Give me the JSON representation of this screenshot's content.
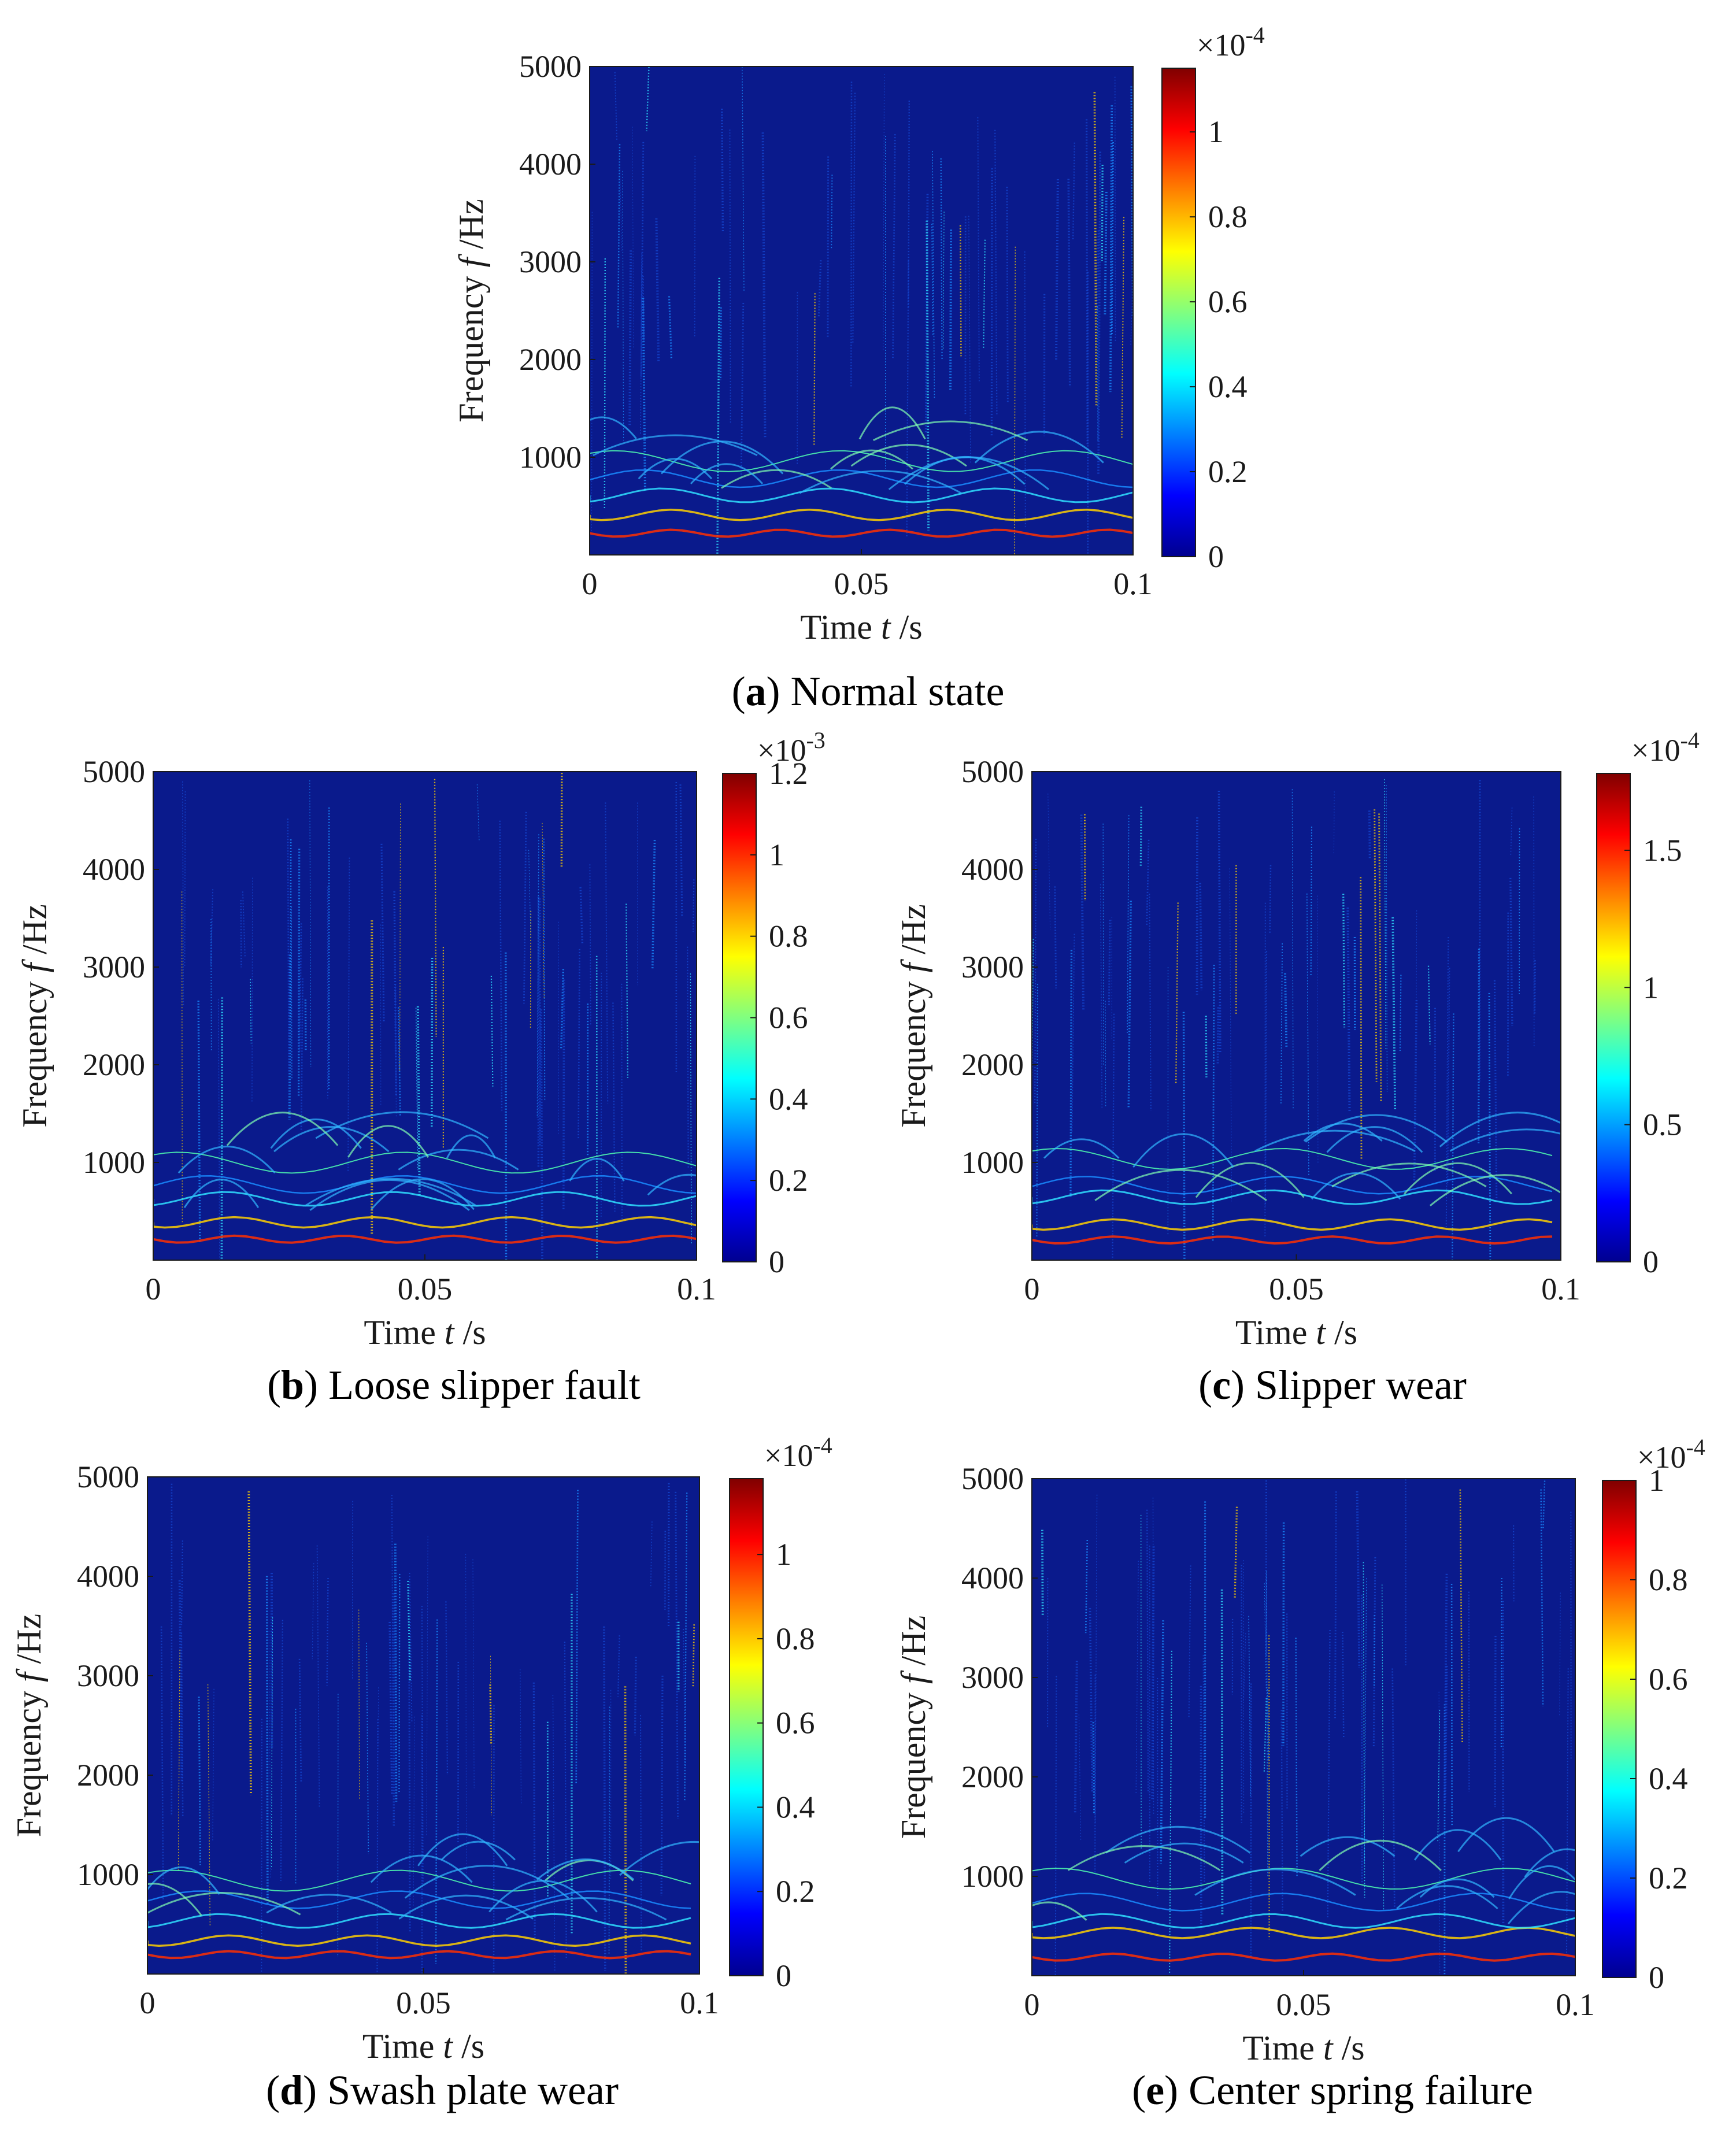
{
  "figure": {
    "time_unit_label": {
      "prefix": "Time ",
      "symbol": "t",
      "suffix": " /s"
    },
    "freq_unit_label": {
      "prefix": "Frequency ",
      "symbol": "f",
      "suffix": " /Hz"
    }
  },
  "chart_data": [
    {
      "id": "a",
      "type": "heatmap",
      "caption_letter": "a",
      "caption_text": "Normal state",
      "xlabel": "Time t /s",
      "ylabel": "Frequency f /Hz",
      "x_ticks": [
        "0",
        "0.05",
        "0.1"
      ],
      "x_tick_values": [
        0,
        0.05,
        0.1
      ],
      "y_ticks": [
        "1000",
        "2000",
        "3000",
        "4000",
        "5000"
      ],
      "y_tick_values": [
        1000,
        2000,
        3000,
        4000,
        5000
      ],
      "xlim": [
        0,
        0.1
      ],
      "ylim": [
        0,
        5000
      ],
      "colorbar_multiplier": "×10",
      "colorbar_exponent": "-4",
      "colorbar_ticks": [
        "0",
        "0.2",
        "0.4",
        "0.6",
        "0.8",
        "1"
      ],
      "colorbar_tick_values": [
        0,
        0.2,
        0.4,
        0.6,
        0.8,
        1.0
      ],
      "colorbar_max": 1.15,
      "colormap": "jet",
      "background_color": "#0a1a8c"
    },
    {
      "id": "b",
      "type": "heatmap",
      "caption_letter": "b",
      "caption_text": "Loose slipper fault",
      "xlabel": "Time t /s",
      "ylabel": "Frequency f /Hz",
      "x_ticks": [
        "0",
        "0.05",
        "0.1"
      ],
      "x_tick_values": [
        0,
        0.05,
        0.1
      ],
      "y_ticks": [
        "1000",
        "2000",
        "3000",
        "4000",
        "5000"
      ],
      "y_tick_values": [
        1000,
        2000,
        3000,
        4000,
        5000
      ],
      "xlim": [
        0,
        0.1
      ],
      "ylim": [
        0,
        5000
      ],
      "colorbar_multiplier": "×10",
      "colorbar_exponent": "-3",
      "colorbar_ticks": [
        "0",
        "0.2",
        "0.4",
        "0.6",
        "0.8",
        "1",
        "1.2"
      ],
      "colorbar_tick_values": [
        0,
        0.2,
        0.4,
        0.6,
        0.8,
        1.0,
        1.2
      ],
      "colorbar_max": 1.2,
      "colormap": "jet",
      "background_color": "#0a1a8c"
    },
    {
      "id": "c",
      "type": "heatmap",
      "caption_letter": "c",
      "caption_text": "Slipper wear",
      "xlabel": "Time t /s",
      "ylabel": "Frequency f /Hz",
      "x_ticks": [
        "0",
        "0.05",
        "0.1"
      ],
      "x_tick_values": [
        0,
        0.05,
        0.1
      ],
      "y_ticks": [
        "1000",
        "2000",
        "3000",
        "4000",
        "5000"
      ],
      "y_tick_values": [
        1000,
        2000,
        3000,
        4000,
        5000
      ],
      "xlim": [
        0,
        0.1
      ],
      "ylim": [
        0,
        5000
      ],
      "colorbar_multiplier": "×10",
      "colorbar_exponent": "-4",
      "colorbar_ticks": [
        "0",
        "0.5",
        "1",
        "1.5"
      ],
      "colorbar_tick_values": [
        0,
        0.5,
        1.0,
        1.5
      ],
      "colorbar_max": 1.78,
      "colormap": "jet",
      "background_color": "#0a1a8c"
    },
    {
      "id": "d",
      "type": "heatmap",
      "caption_letter": "d",
      "caption_text": "Swash plate wear",
      "xlabel": "Time t /s",
      "ylabel": "Frequency f /Hz",
      "x_ticks": [
        "0",
        "0.05",
        "0.1"
      ],
      "x_tick_values": [
        0,
        0.05,
        0.1
      ],
      "y_ticks": [
        "1000",
        "2000",
        "3000",
        "4000",
        "5000"
      ],
      "y_tick_values": [
        1000,
        2000,
        3000,
        4000,
        5000
      ],
      "xlim": [
        0,
        0.1
      ],
      "ylim": [
        0,
        5000
      ],
      "colorbar_multiplier": "×10",
      "colorbar_exponent": "-4",
      "colorbar_ticks": [
        "0",
        "0.2",
        "0.4",
        "0.6",
        "0.8",
        "1"
      ],
      "colorbar_tick_values": [
        0,
        0.2,
        0.4,
        0.6,
        0.8,
        1.0
      ],
      "colorbar_max": 1.18,
      "colormap": "jet",
      "background_color": "#0a1a8c"
    },
    {
      "id": "e",
      "type": "heatmap",
      "caption_letter": "e",
      "caption_text": "Center spring failure",
      "xlabel": "Time t /s",
      "ylabel": "Frequency f /Hz",
      "x_ticks": [
        "0",
        "0.05",
        "0.1"
      ],
      "x_tick_values": [
        0,
        0.05,
        0.1
      ],
      "y_ticks": [
        "1000",
        "2000",
        "3000",
        "4000",
        "5000"
      ],
      "y_tick_values": [
        1000,
        2000,
        3000,
        4000,
        5000
      ],
      "xlim": [
        0,
        0.1
      ],
      "ylim": [
        0,
        5000
      ],
      "colorbar_multiplier": "×10",
      "colorbar_exponent": "-4",
      "colorbar_ticks": [
        "0",
        "0.2",
        "0.4",
        "0.6",
        "0.8",
        "1"
      ],
      "colorbar_tick_values": [
        0,
        0.2,
        0.4,
        0.6,
        0.8,
        1.0
      ],
      "colorbar_max": 1.0,
      "colormap": "jet",
      "background_color": "#0a1a8c"
    }
  ]
}
